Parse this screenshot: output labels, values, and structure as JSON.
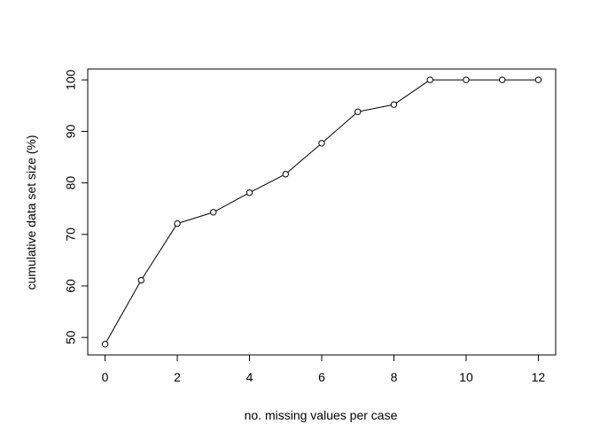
{
  "chart_data": {
    "type": "line",
    "title": "",
    "xlabel": "no. missing values per case",
    "ylabel": "cumulative data set size (%)",
    "x": [
      0,
      1,
      2,
      3,
      4,
      5,
      6,
      7,
      8,
      9,
      10,
      11,
      12
    ],
    "series": [
      {
        "values": [
          48.7,
          61.1,
          72.1,
          74.3,
          78.1,
          81.7,
          87.7,
          93.8,
          95.2,
          100,
          100,
          100,
          100
        ]
      }
    ],
    "xlim": [
      -0.48,
      12.48
    ],
    "ylim": [
      46.6,
      102.1
    ],
    "xticks": [
      0,
      2,
      4,
      6,
      8,
      10,
      12
    ],
    "yticks": [
      50,
      60,
      70,
      80,
      90,
      100
    ],
    "grid": false,
    "legend": "none",
    "markers": "open-circle",
    "line_color": "#000000"
  }
}
